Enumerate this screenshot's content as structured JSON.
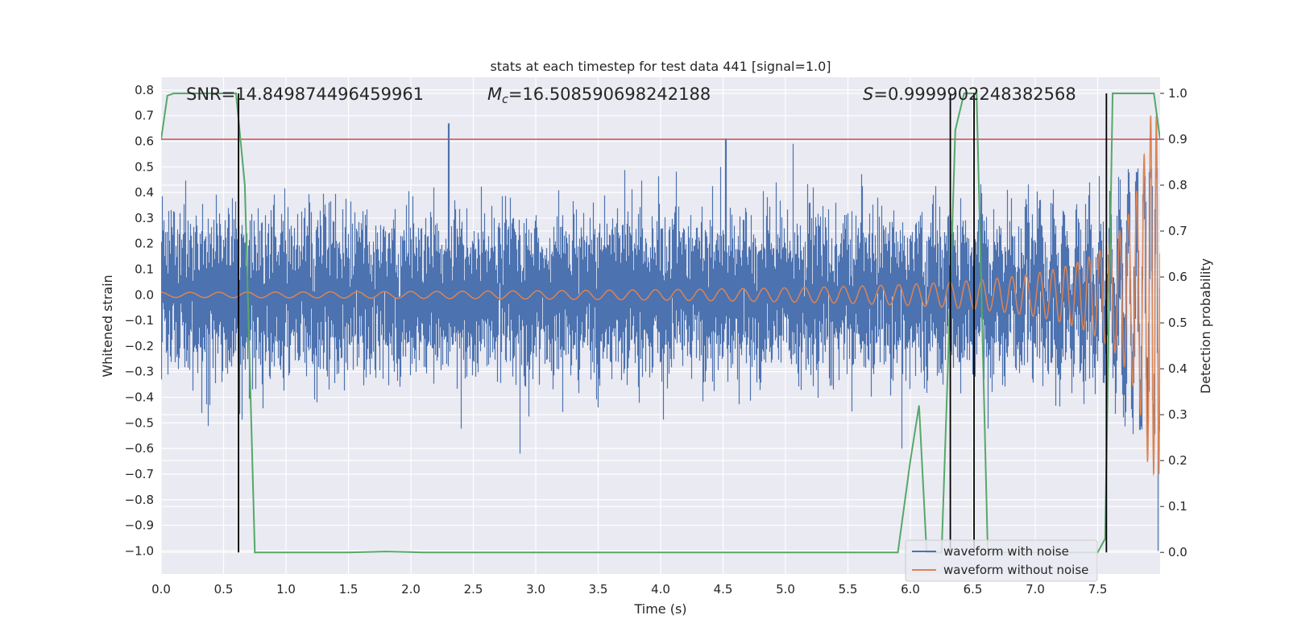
{
  "chart_data": {
    "type": "line",
    "title": "stats at each timestep for test data 441 [signal=1.0]",
    "xlabel": "Time (s)",
    "ylabel": "Whitened strain",
    "y2label": "Detection probability",
    "xlim": [
      0.0,
      8.0
    ],
    "ylim": [
      -1.09,
      0.85
    ],
    "y2lim": [
      -0.047,
      1.035
    ],
    "xticks": [
      "0.0",
      "0.5",
      "1.0",
      "1.5",
      "2.0",
      "2.5",
      "3.0",
      "3.5",
      "4.0",
      "4.5",
      "5.0",
      "5.5",
      "6.0",
      "6.5",
      "7.0",
      "7.5"
    ],
    "yticks": [
      "0.8",
      "0.7",
      "0.6",
      "0.5",
      "0.4",
      "0.3",
      "0.2",
      "0.1",
      "0.0",
      "−0.1",
      "−0.2",
      "−0.3",
      "−0.4",
      "−0.5",
      "−0.6",
      "−0.7",
      "−0.8",
      "−0.9",
      "−1.0"
    ],
    "y2ticks": [
      "0.0",
      "0.1",
      "0.2",
      "0.3",
      "0.4",
      "0.5",
      "0.6",
      "0.7",
      "0.8",
      "0.9",
      "1.0"
    ],
    "annotations": {
      "snr": "SNR=14.849874496459961",
      "mc_symbol": "M",
      "mc_sub": "c",
      "mc_value": "=16.508590698242188",
      "s_symbol": "S",
      "s_value": "=0.9999902248382568"
    },
    "legend": {
      "position": "lower-right",
      "entries": [
        "waveform with noise",
        "waveform without noise"
      ]
    },
    "colors": {
      "noisy": "#4c72b0",
      "clean": "#dd8452",
      "probability": "#55a868",
      "threshold": "#c44e52",
      "markers": "#000000",
      "background": "#eaeaf2",
      "grid": "#ffffff"
    },
    "threshold_probability": 0.9,
    "detection_markers_s": [
      0.62,
      6.32,
      6.51,
      7.57
    ],
    "series": [
      {
        "name": "waveform with noise",
        "noise_std": 0.14,
        "duration_s": 8.0,
        "notable_spikes": [
          {
            "t": 2.3,
            "v": 0.67
          },
          {
            "t": 4.52,
            "v": 0.61
          },
          {
            "t": 5.06,
            "v": 0.59
          },
          {
            "t": 2.87,
            "v": -0.62
          },
          {
            "t": 5.93,
            "v": -0.6
          },
          {
            "t": 7.98,
            "v": -1.0
          }
        ]
      },
      {
        "name": "waveform without noise",
        "note": "chirp, amplitude grows from 0.01 to 0.7 near t=8",
        "start_amplitude": 0.01,
        "end_amplitude": 0.7
      },
      {
        "name": "detection probability",
        "axis": "right",
        "points": [
          [
            0.0,
            0.9
          ],
          [
            0.05,
            0.995
          ],
          [
            0.1,
            1.0
          ],
          [
            0.6,
            1.0
          ],
          [
            0.67,
            0.8
          ],
          [
            0.75,
            0.0
          ],
          [
            1.5,
            0.0
          ],
          [
            1.8,
            0.002
          ],
          [
            2.1,
            0.0
          ],
          [
            5.9,
            0.0
          ],
          [
            6.0,
            0.2
          ],
          [
            6.07,
            0.32
          ],
          [
            6.13,
            0.0
          ],
          [
            6.25,
            0.0
          ],
          [
            6.3,
            0.4
          ],
          [
            6.36,
            0.92
          ],
          [
            6.43,
            1.0
          ],
          [
            6.53,
            1.0
          ],
          [
            6.62,
            0.0
          ],
          [
            7.5,
            0.0
          ],
          [
            7.56,
            0.03
          ],
          [
            7.62,
            1.0
          ],
          [
            7.95,
            1.0
          ],
          [
            8.0,
            0.9
          ]
        ]
      }
    ]
  }
}
